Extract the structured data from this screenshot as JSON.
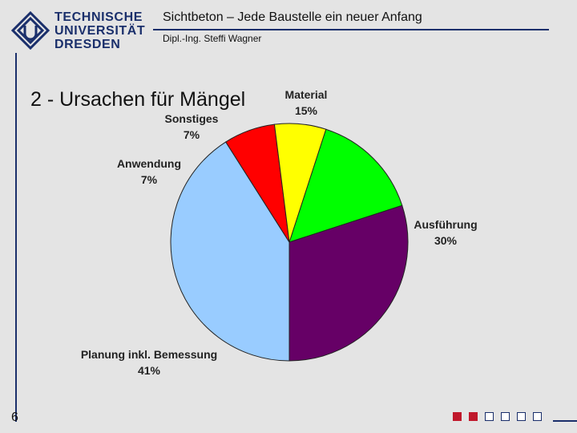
{
  "header": {
    "logo_lines": [
      "TECHNISCHE",
      "UNIVERSITÄT",
      "DRESDEN"
    ],
    "title": "Sichtbeton – Jede Baustelle ein neuer Anfang",
    "subtitle": "Dipl.-Ing. Steffi Wagner"
  },
  "slide": {
    "title": "2 - Ursachen für Mängel",
    "page_number": "6"
  },
  "colors": {
    "brand": "#1a2f6b",
    "accent": "#c0182b"
  },
  "footer": {
    "squares": [
      "filled",
      "filled",
      "open",
      "open",
      "open",
      "open"
    ]
  },
  "chart_data": {
    "type": "pie",
    "start_angle_deg": -72,
    "direction": "clockwise",
    "slices": [
      {
        "name": "Material",
        "value": 15,
        "label": "15%",
        "color": "#00ff00"
      },
      {
        "name": "Ausführung",
        "value": 30,
        "label": "30%",
        "color": "#660066"
      },
      {
        "name": "Planung inkl. Bemessung",
        "value": 41,
        "label": "41%",
        "color": "#99ccff"
      },
      {
        "name": "Anwendung",
        "value": 7,
        "label": "7%",
        "color": "#ff0000"
      },
      {
        "name": "Sonstiges",
        "value": 7,
        "label": "7%",
        "color": "#ffff00"
      }
    ]
  }
}
